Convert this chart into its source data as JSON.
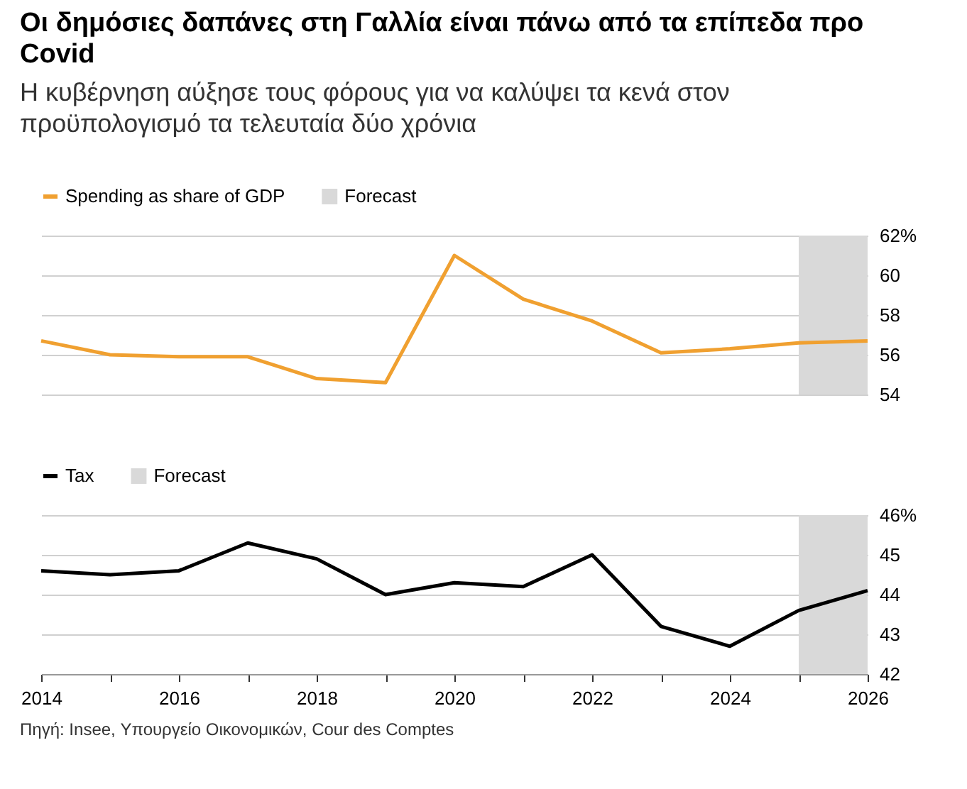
{
  "chart_data": [
    {
      "type": "line",
      "title": "Οι δημόσιες δαπάνες στη Γαλλία είναι πάνω από τα επίπεδα προ Covid",
      "subtitle": "Η κυβέρνηση αύξησε τους φόρους για να καλύψει τα κενά στον προϋπολογισμό τα τελευταία δύο χρόνια",
      "x": [
        2014,
        2015,
        2016,
        2017,
        2018,
        2019,
        2020,
        2021,
        2022,
        2023,
        2024,
        2025,
        2026
      ],
      "series": [
        {
          "name": "Spending as share of GDP",
          "color": "#f0a030",
          "values": [
            56.7,
            56.0,
            55.9,
            55.9,
            54.8,
            54.6,
            61.0,
            58.8,
            57.7,
            56.1,
            56.3,
            56.6,
            56.7
          ]
        }
      ],
      "bands": [
        {
          "axis": "x",
          "from": 2025,
          "to": 2026,
          "label": "Forecast",
          "color": "#d9d9d9"
        }
      ],
      "xlim": [
        2014,
        2026
      ],
      "ylim": [
        54,
        62
      ],
      "yticks": [
        54,
        56,
        58,
        60,
        {
          "value": 62,
          "label": "62%"
        }
      ],
      "grid": "y",
      "legend": "top left",
      "tick_labels": "y"
    },
    {
      "type": "line",
      "x": [
        2014,
        2015,
        2016,
        2017,
        2018,
        2019,
        2020,
        2021,
        2022,
        2023,
        2024,
        2025,
        2026
      ],
      "series": [
        {
          "name": "Tax",
          "color": "#000000",
          "values": [
            44.6,
            44.5,
            44.6,
            45.3,
            44.9,
            44.0,
            44.3,
            44.2,
            45.0,
            43.2,
            42.7,
            43.6,
            44.1
          ]
        }
      ],
      "bands": [
        {
          "axis": "x",
          "from": 2025,
          "to": 2026,
          "label": "Forecast",
          "color": "#d9d9d9"
        }
      ],
      "xlim": [
        2014,
        2026
      ],
      "xticks": [
        2014,
        {
          "value": 2015,
          "label": null
        },
        2016,
        {
          "value": 2017,
          "label": null
        },
        2018,
        {
          "value": 2019,
          "label": null
        },
        2020,
        {
          "value": 2021,
          "label": null
        },
        2022,
        {
          "value": 2023,
          "label": null
        },
        2024,
        {
          "value": 2025,
          "label": null
        },
        2026
      ],
      "ylim": [
        42,
        46
      ],
      "yticks": [
        42,
        43,
        44,
        45,
        {
          "value": 46,
          "label": "46%"
        }
      ],
      "grid": "y",
      "legend": "top left",
      "annotations": [
        "Πηγή: Insee, Υπουργείο Οικονομικών, Cour des Comptes"
      ]
    }
  ]
}
